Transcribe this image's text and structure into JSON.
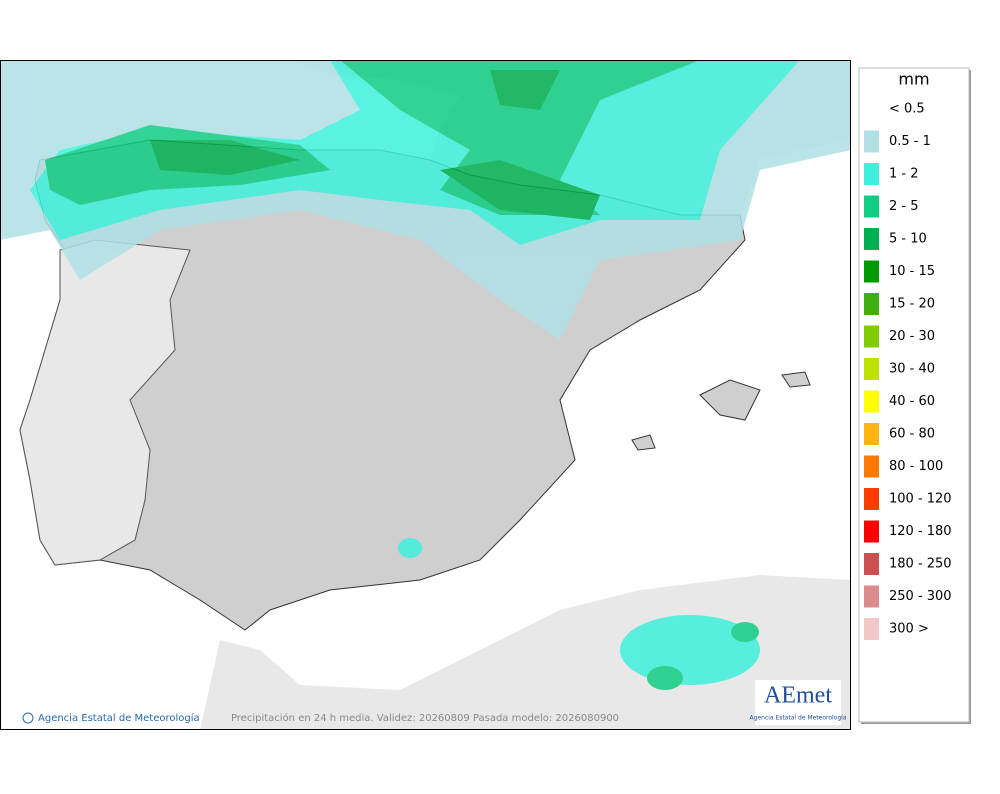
{
  "legend": {
    "title": "mm",
    "items": [
      {
        "label": "< 0.5"
      },
      {
        "label": "0.5 - 1",
        "color": "#b0e0e6"
      },
      {
        "label": "1 - 2",
        "color": "#3ef0dc"
      },
      {
        "label": "2 - 5",
        "color": "#10cc84"
      },
      {
        "label": "5 - 10",
        "color": "#00b050"
      },
      {
        "label": "10 - 15",
        "color": "#009a00"
      },
      {
        "label": "15 - 20",
        "color": "#40b010"
      },
      {
        "label": "20 - 30",
        "color": "#80cc00"
      },
      {
        "label": "30 - 40",
        "color": "#c0e000"
      },
      {
        "label": "40 - 60",
        "color": "#ffff00"
      },
      {
        "label": "60 - 80",
        "color": "#ffb414"
      },
      {
        "label": "80 - 100",
        "color": "#ff7800"
      },
      {
        "label": "100 - 120",
        "color": "#ff3c00"
      },
      {
        "label": "120 - 180",
        "color": "#ff0000"
      },
      {
        "label": "180 - 250",
        "color": "#cc5050"
      },
      {
        "label": "250 - 300",
        "color": "#dc8c8c"
      },
      {
        "label": "300 >",
        "color": "#f0c8c8"
      }
    ]
  },
  "footer": {
    "credit": "Agencia Estatal de Meteorología",
    "caption": "Precipitación en 24 h media. Validez: 20260809 Pasada modelo: 2026080900"
  },
  "logo": {
    "mark": "AEmet",
    "subtitle": "Agencia Estatal de Meteorología"
  }
}
